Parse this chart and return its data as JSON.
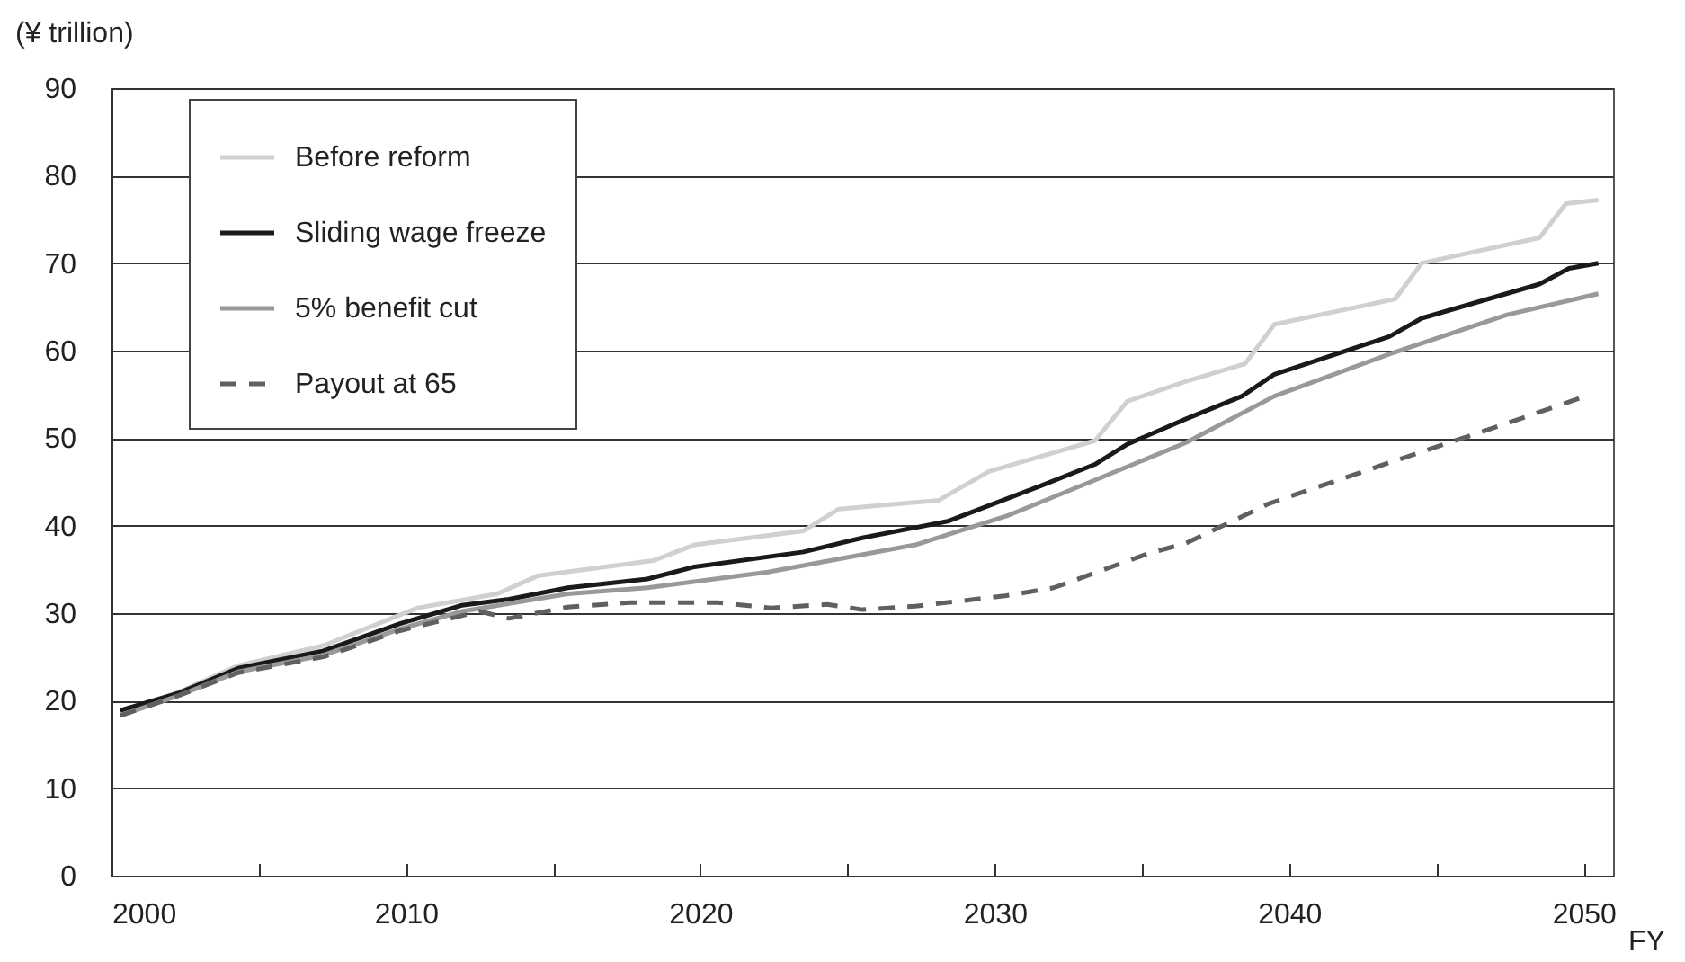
{
  "chart_data": {
    "type": "line",
    "xlabel": "FY",
    "ylabel": "(¥ trillion)",
    "xlim": [
      2000,
      2051
    ],
    "xticks": [
      2000,
      {
        "value": 2005,
        "label": null
      },
      2010,
      {
        "value": 2015,
        "label": null
      },
      2020,
      {
        "value": 2025,
        "label": null
      },
      2030,
      {
        "value": 2035,
        "label": null
      },
      2040,
      {
        "value": 2045,
        "label": null
      },
      2050
    ],
    "ylim": [
      0,
      90
    ],
    "yticks": [
      0,
      10,
      20,
      30,
      40,
      50,
      60,
      70,
      80,
      90
    ],
    "grid": "y",
    "legend": "top left",
    "series": [
      {
        "name": "Before reform",
        "color": "#d0d0d0",
        "x": [
          2000.3,
          2002.3,
          2004.3,
          2007.2,
          2010.4,
          2013.1,
          2014.5,
          2018.4,
          2019.8,
          2023.5,
          2024.7,
          2028.1,
          2029.8,
          2033.4,
          2034.5,
          2036.5,
          2038.5,
          2039.5,
          2043.6,
          2044.5,
          2048.5,
          2049.4,
          2050.5
        ],
        "values": [
          18.6,
          21.0,
          24.0,
          26.3,
          30.6,
          32.2,
          34.3,
          36.0,
          37.8,
          39.4,
          41.9,
          42.9,
          46.2,
          49.7,
          54.2,
          56.5,
          58.5,
          63.0,
          65.9,
          70.0,
          72.9,
          76.8,
          77.2
        ]
      },
      {
        "name": "Sliding wage freeze",
        "color": "#1a1a1a",
        "x": [
          2000.3,
          2002.3,
          2004.3,
          2007.2,
          2009.8,
          2011.9,
          2013.5,
          2015.5,
          2018.2,
          2019.8,
          2023.5,
          2025.5,
          2028.4,
          2031.6,
          2033.4,
          2034.5,
          2036.5,
          2038.4,
          2039.5,
          2043.4,
          2044.5,
          2048.5,
          2049.5,
          2050.5
        ],
        "values": [
          18.9,
          20.9,
          23.7,
          25.7,
          28.8,
          30.9,
          31.6,
          32.9,
          33.9,
          35.3,
          37.0,
          38.6,
          40.5,
          44.6,
          47.0,
          49.3,
          52.2,
          54.8,
          57.3,
          61.6,
          63.7,
          67.6,
          69.4,
          70.0
        ]
      },
      {
        "name": "5% benefit cut",
        "color": "#999999",
        "x": [
          2000.3,
          2002.3,
          2004.3,
          2007.2,
          2009.8,
          2011.9,
          2015.5,
          2018.2,
          2022.3,
          2027.3,
          2030.4,
          2033.4,
          2036.5,
          2039.5,
          2043.4,
          2047.4,
          2050.5
        ],
        "values": [
          18.3,
          20.6,
          23.3,
          25.2,
          28.2,
          30.2,
          32.2,
          32.9,
          34.7,
          37.8,
          41.1,
          45.2,
          49.5,
          54.8,
          59.6,
          64.1,
          66.5
        ]
      },
      {
        "name": "Payout at 65",
        "color": "#606060",
        "line_style": "dashed",
        "x": [
          2000.3,
          2002.3,
          2004.3,
          2007.2,
          2009.8,
          2012.5,
          2013.5,
          2015.5,
          2017.6,
          2020.6,
          2022.4,
          2024.3,
          2025.5,
          2027.3,
          2030.4,
          2032,
          2035.2,
          2036.5,
          2039.3,
          2043.4,
          2047.4,
          2049.9
        ],
        "values": [
          18.3,
          20.6,
          23.2,
          25.0,
          28.0,
          30.2,
          29.4,
          30.7,
          31.2,
          31.2,
          30.6,
          31.0,
          30.4,
          30.8,
          32.0,
          32.9,
          36.8,
          38.0,
          42.5,
          47.2,
          51.7,
          54.6
        ]
      }
    ]
  }
}
